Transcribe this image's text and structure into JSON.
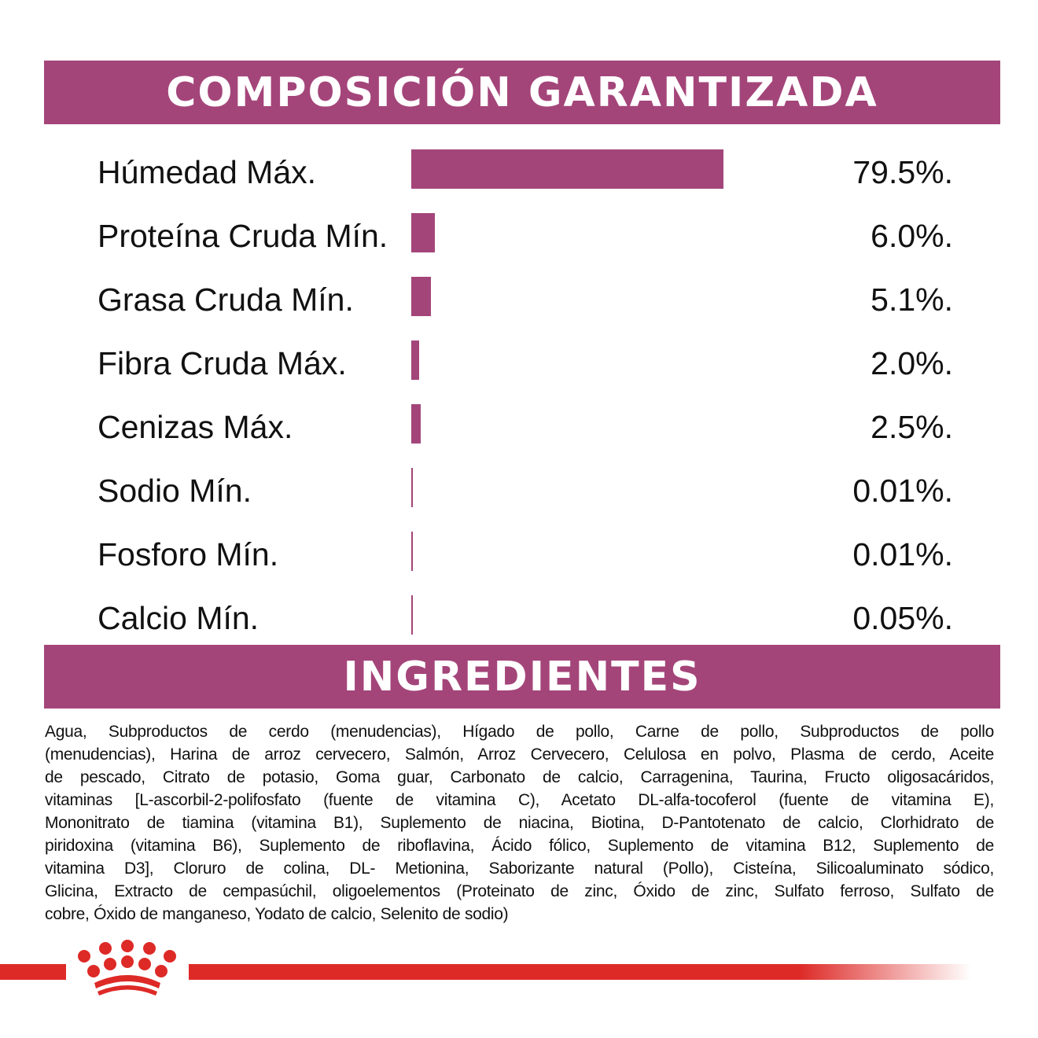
{
  "composition": {
    "title": "COMPOSICIÓN GARANTIZADA"
  },
  "chart_data": {
    "type": "bar",
    "orientation": "horizontal",
    "categories": [
      "Húmedad Máx.",
      "Proteína Cruda Mín.",
      "Grasa Cruda Mín.",
      "Fibra Cruda Máx.",
      "Cenizas Máx.",
      "Sodio Mín.",
      "Fosforo Mín.",
      "Calcio Mín."
    ],
    "values": [
      79.5,
      6.0,
      5.1,
      2.0,
      2.5,
      0.01,
      0.01,
      0.05
    ],
    "value_labels": [
      "79.5%.",
      "6.0%.",
      "5.1%.",
      "2.0%.",
      "2.5%.",
      "0.01%.",
      "0.01%.",
      "0.05%."
    ],
    "unit": "%",
    "xlim": [
      0,
      80
    ],
    "grid": false,
    "bar_color": "#a4457a"
  },
  "ingredients": {
    "title": "INGREDIENTES",
    "lines": [
      "Agua, Subproductos de cerdo (menudencias), Hígado de pollo, Carne de pollo, Subproductos de pollo",
      "(menudencias), Harina de arroz cervecero, Salmón, Arroz Cervecero, Celulosa en polvo, Plasma de cerdo, Aceite",
      "de pescado, Citrato de potasio, Goma guar, Carbonato de calcio, Carragenina, Taurina, Fructo oligosacáridos,",
      "vitaminas [L-ascorbil-2-polifosfato (fuente de vitamina C), Acetato DL-alfa-tocoferol (fuente de vitamina E),",
      "Mononitrato de tiamina (vitamina B1), Suplemento de niacina, Biotina, D-Pantotenato de calcio, Clorhidrato de",
      "piridoxina (vitamina B6), Suplemento de riboflavina, Ácido fólico, Suplemento de vitamina B12, Suplemento de",
      "vitamina D3], Cloruro de colina, DL- Metionina, Saborizante natural (Pollo), Cisteína, Silicoaluminato sódico,",
      "Glicina, Extracto de cempasúchil, oligoelementos (Proteinato de zinc, Óxido de zinc, Sulfato ferroso, Sulfato de",
      "cobre, Óxido de manganeso, Yodato de calcio, Selenito de sodio)"
    ]
  },
  "footer": {
    "logo_icon": "crown-logo-icon",
    "brand_color": "#dd2a27"
  }
}
